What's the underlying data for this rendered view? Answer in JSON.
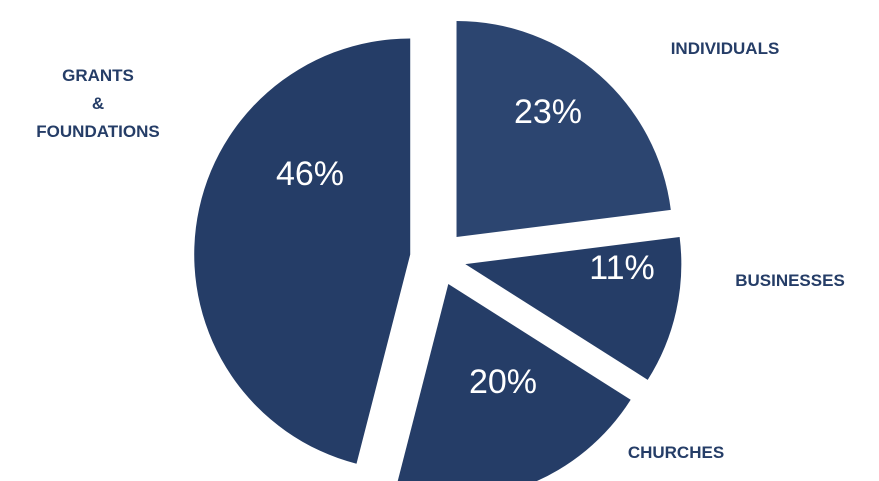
{
  "chart_data": {
    "type": "pie",
    "exploded": true,
    "title": "",
    "slices": [
      {
        "category": "INDIVIDUALS",
        "value": 23,
        "label": "23%"
      },
      {
        "category": "BUSINESSES",
        "value": 11,
        "label": "11%"
      },
      {
        "category": "CHURCHES",
        "value": 20,
        "label": "20%"
      },
      {
        "category": "GRANTS & FOUNDATIONS",
        "category_lines": [
          "GRANTS",
          "&",
          "FOUNDATIONS"
        ],
        "value": 46,
        "label": "46%"
      }
    ]
  },
  "colors": {
    "slice_fill": "#253d67",
    "slice_fill_individuals": "#2c4570",
    "slice_label": "#ffffff",
    "category_label": "#253d67"
  }
}
